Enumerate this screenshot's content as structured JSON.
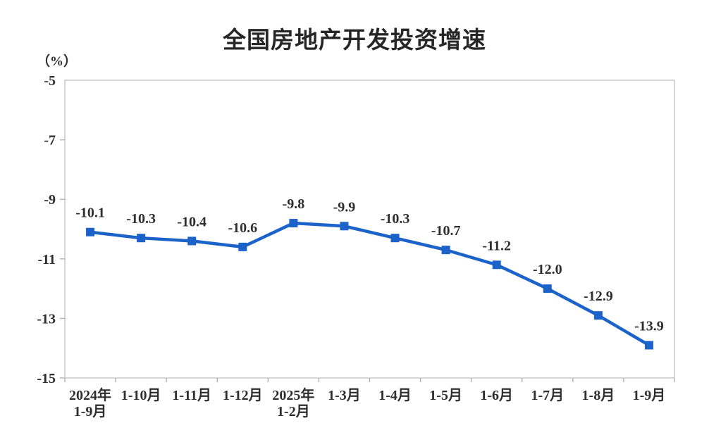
{
  "chart_data": {
    "type": "line",
    "title": "全国房地产开发投资增速",
    "unit": "（%）",
    "categories": [
      "2024年\n1-9月",
      "1-10月",
      "1-11月",
      "1-12月",
      "2025年\n1-2月",
      "1-3月",
      "1-4月",
      "1-5月",
      "1-6月",
      "1-7月",
      "1-8月",
      "1-9月"
    ],
    "values": [
      -10.1,
      -10.3,
      -10.4,
      -10.6,
      -9.8,
      -9.9,
      -10.3,
      -10.7,
      -11.2,
      -12.0,
      -12.9,
      -13.9
    ],
    "point_labels": [
      "-10.1",
      "-10.3",
      "-10.4",
      "-10.6",
      "-9.8",
      "-9.9",
      "-10.3",
      "-10.7",
      "-11.2",
      "-12.0",
      "-12.9",
      "-13.9"
    ],
    "ylim": [
      -15,
      -5
    ],
    "yticks": [
      -5,
      -7,
      -9,
      -11,
      -13,
      -15
    ],
    "grid": false,
    "legend": "none",
    "marker": "square"
  },
  "colors": {
    "series_line": "#1b63c9",
    "marker_fill": "#1b63c9",
    "plot_border": "#c9c9c9",
    "tick_mark": "#b5b5b5",
    "text": "#2e2e2e",
    "title_text": "#262626",
    "background": "#ffffff"
  }
}
